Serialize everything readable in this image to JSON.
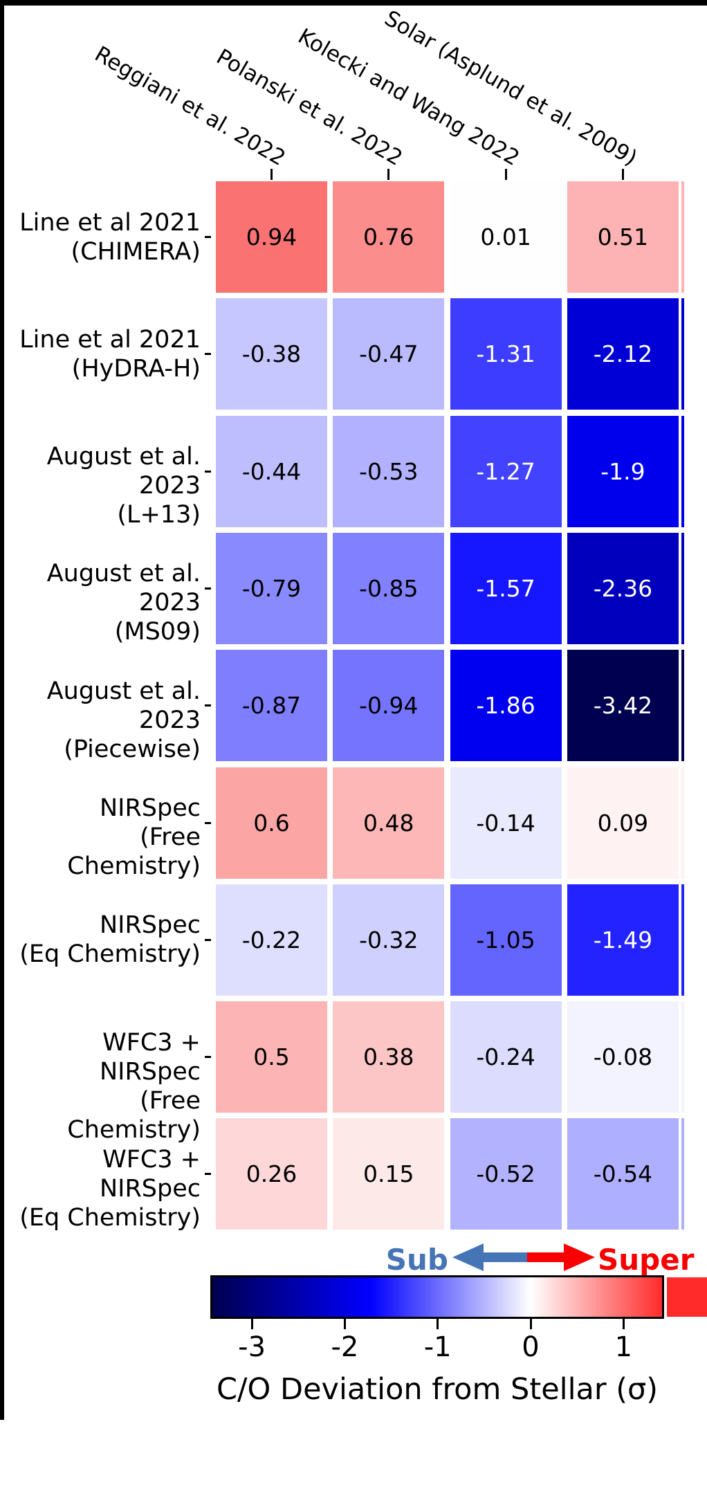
{
  "chart_data": {
    "type": "heatmap",
    "columns": [
      "Reggiani et al. 2022",
      "Polanski et al. 2022",
      "Kolecki and Wang 2022",
      "Solar (Asplund et al. 2009)"
    ],
    "rows": [
      {
        "label_lines": [
          "Line et al 2021",
          "(CHIMERA)"
        ],
        "values": [
          0.94,
          0.76,
          0.01,
          0.51
        ],
        "value_labels": [
          "0.94",
          "0.76",
          "0.01",
          "0.51"
        ]
      },
      {
        "label_lines": [
          "Line et al 2021",
          "(HyDRA-H)"
        ],
        "values": [
          -0.38,
          -0.47,
          -1.31,
          -2.12
        ],
        "value_labels": [
          "-0.38",
          "-0.47",
          "-1.31",
          "-2.12"
        ]
      },
      {
        "label_lines": [
          "August et al. 2023",
          "(L+13)"
        ],
        "values": [
          -0.44,
          -0.53,
          -1.27,
          -1.9
        ],
        "value_labels": [
          "-0.44",
          "-0.53",
          "-1.27",
          "-1.9"
        ]
      },
      {
        "label_lines": [
          "August et al. 2023",
          "(MS09)"
        ],
        "values": [
          -0.79,
          -0.85,
          -1.57,
          -2.36
        ],
        "value_labels": [
          "-0.79",
          "-0.85",
          "-1.57",
          "-2.36"
        ]
      },
      {
        "label_lines": [
          "August et al. 2023",
          "(Piecewise)"
        ],
        "values": [
          -0.87,
          -0.94,
          -1.86,
          -3.42
        ],
        "value_labels": [
          "-0.87",
          "-0.94",
          "-1.86",
          "-3.42"
        ]
      },
      {
        "label_lines": [
          "NIRSpec",
          "(Free Chemistry)"
        ],
        "values": [
          0.6,
          0.48,
          -0.14,
          0.09
        ],
        "value_labels": [
          "0.6",
          "0.48",
          "-0.14",
          "0.09"
        ]
      },
      {
        "label_lines": [
          "NIRSpec",
          "(Eq Chemistry)"
        ],
        "values": [
          -0.22,
          -0.32,
          -1.05,
          -1.49
        ],
        "value_labels": [
          "-0.22",
          "-0.32",
          "-1.05",
          "-1.49"
        ]
      },
      {
        "label_lines": [
          "WFC3 + NIRSpec",
          "(Free Chemistry)"
        ],
        "values": [
          0.5,
          0.38,
          -0.24,
          -0.08
        ],
        "value_labels": [
          "0.5",
          "0.38",
          "-0.24",
          "-0.08"
        ]
      },
      {
        "label_lines": [
          "WFC3 + NIRSpec",
          "(Eq Chemistry)"
        ],
        "values": [
          0.26,
          0.15,
          -0.52,
          -0.54
        ],
        "value_labels": [
          "0.26",
          "0.15",
          "-0.52",
          "-0.54"
        ]
      }
    ],
    "colorbar": {
      "label": "C/O Deviation from Stellar (σ)",
      "ticks": [
        -3,
        -2,
        -1,
        0,
        1
      ],
      "tick_labels": [
        "-3",
        "-2",
        "-1",
        "0",
        "1"
      ],
      "vmin": -3.42,
      "vmax": 1.41,
      "colors": {
        "dark_navy_end": "#00004f",
        "blue_mid": "#0000ff",
        "white_center": "#ffffff",
        "red_end": "#ff2b2b"
      }
    },
    "legend": {
      "sub_label": "Sub",
      "super_label": "Super",
      "sub_color": "#4575b5",
      "super_color": "#f80000"
    }
  }
}
